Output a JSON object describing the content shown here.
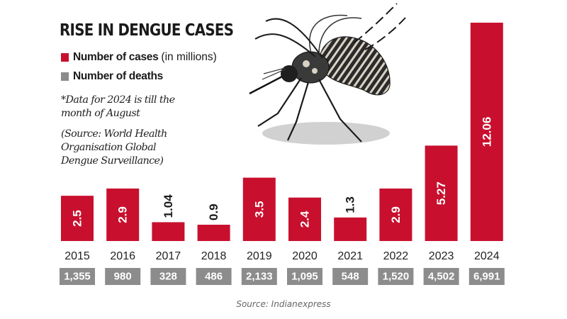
{
  "title": "RISE IN DENGUE CASES",
  "legend": {
    "cases": {
      "label": "Number of cases",
      "unit": "(in millions)",
      "color": "#c8102e"
    },
    "deaths": {
      "label": "Number of deaths",
      "color": "#8c8c8c"
    }
  },
  "note": "*Data for 2024 is till the month of August",
  "source_note": "(Source: World Health Organisation Global Dengue Surveillance)",
  "credit": "Source: Indianexpress",
  "icons": {
    "illustration": "mosquito-icon"
  },
  "chart_data": {
    "type": "bar",
    "categories": [
      "2015",
      "2016",
      "2017",
      "2018",
      "2019",
      "2020",
      "2021",
      "2022",
      "2023",
      "2024"
    ],
    "series": [
      {
        "name": "Number of cases (in millions)",
        "values": [
          2.5,
          2.9,
          1.04,
          0.9,
          3.5,
          2.4,
          1.3,
          2.9,
          5.27,
          12.06
        ],
        "labels": [
          "2.5",
          "2.9",
          "1.04",
          "0.9",
          "3.5",
          "2.4",
          "1.3",
          "2.9",
          "5.27",
          "12.06"
        ]
      },
      {
        "name": "Number of deaths",
        "values": [
          1355,
          980,
          328,
          486,
          2133,
          1095,
          548,
          1520,
          4502,
          6991
        ],
        "labels": [
          "1,355",
          "980",
          "328",
          "486",
          "2,133",
          "1,095",
          "548",
          "1,520",
          "4,502",
          "6,991"
        ]
      }
    ],
    "ylim": [
      0,
      12.06
    ],
    "grid": false,
    "legend_position": "top-left"
  }
}
